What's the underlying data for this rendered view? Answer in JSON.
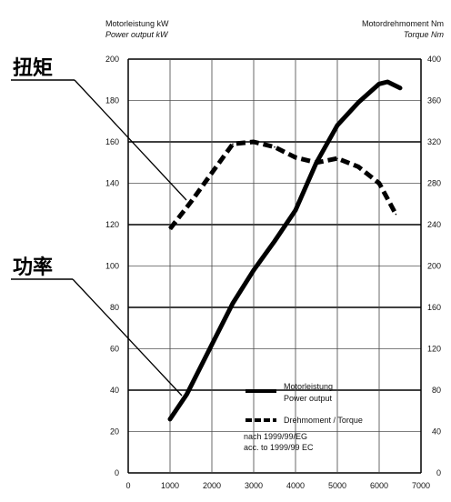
{
  "chart_data": {
    "type": "line",
    "header": {
      "left_line1": "Motorleistung kW",
      "left_line2": "Power output  kW",
      "right_line1": "Motordrehmoment Nm",
      "right_line2": "Torque  Nm"
    },
    "x_ticks": [
      "0",
      "1000",
      "2000",
      "3000",
      "4000",
      "5000",
      "6000",
      "7000"
    ],
    "xlim": [
      0,
      7000
    ],
    "y_left_ticks": [
      "0",
      "20",
      "40",
      "60",
      "80",
      "100",
      "120",
      "140",
      "160",
      "180",
      "200"
    ],
    "ylim_left": [
      0,
      200
    ],
    "y_right_ticks": [
      "0",
      "40",
      "80",
      "120",
      "160",
      "200",
      "240",
      "280",
      "320",
      "360",
      "400"
    ],
    "ylim_right": [
      0,
      400
    ],
    "grid": true,
    "annotations": {
      "torque_cn": "扭矩",
      "power_cn": "功率"
    },
    "legend": {
      "position": "lower-right",
      "power_line1": "Motorleistung",
      "power_line2": "Power output",
      "torque_label": "Drehmoment / Torque",
      "note_line1": "nach 1999/99/EG",
      "note_line2": "acc. to 1999/99 EC"
    },
    "series": [
      {
        "key": "power",
        "axis": "left",
        "style": "solid",
        "points": [
          [
            1000,
            26
          ],
          [
            1400,
            38
          ],
          [
            2000,
            62
          ],
          [
            2500,
            82
          ],
          [
            3000,
            98
          ],
          [
            3500,
            112
          ],
          [
            4000,
            127
          ],
          [
            4500,
            150
          ],
          [
            5000,
            168
          ],
          [
            5500,
            179
          ],
          [
            6000,
            188
          ],
          [
            6200,
            189
          ],
          [
            6500,
            186
          ]
        ]
      },
      {
        "key": "torque",
        "axis": "right",
        "style": "dashed",
        "points": [
          [
            1000,
            236
          ],
          [
            1500,
            262
          ],
          [
            2000,
            290
          ],
          [
            2500,
            318
          ],
          [
            3000,
            320
          ],
          [
            3500,
            315
          ],
          [
            4000,
            305
          ],
          [
            4500,
            300
          ],
          [
            5000,
            304
          ],
          [
            5500,
            296
          ],
          [
            6000,
            280
          ],
          [
            6400,
            250
          ]
        ]
      }
    ]
  }
}
